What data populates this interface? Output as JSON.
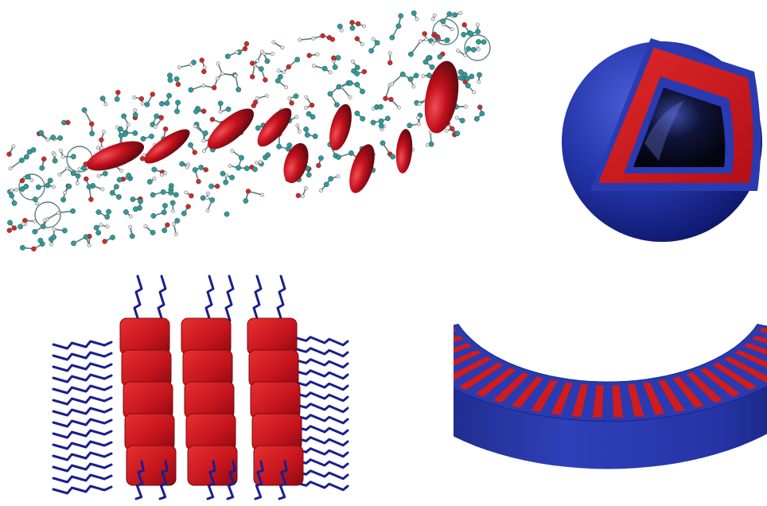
{
  "figure": {
    "panels": [
      {
        "id": "molecular-assembly",
        "shape": "ball-and-stick molecular network with embedded rod-like cores"
      },
      {
        "id": "core-shell-sphere",
        "shape": "cut-away sphere with blue shell, red inner layer and dark hollow core"
      },
      {
        "id": "lamellar-brush-array",
        "shape": "stacked red rounded blocks with dark blue polymer chains"
      },
      {
        "id": "striped-arc-segment",
        "shape": "blue curved slab with radial red stripes"
      }
    ]
  },
  "colors": {
    "red": "#d01c1c",
    "dark_red": "#8e0d16",
    "blue": "#2a3aa6",
    "dark_blue": "#101a6e",
    "chain_blue": "#1a1f8c",
    "teal_atom": "#2f9a9a",
    "oxygen_atom": "#cc2a2a",
    "hydrogen_atom": "#e4e4e4",
    "background": "#ffffff"
  }
}
